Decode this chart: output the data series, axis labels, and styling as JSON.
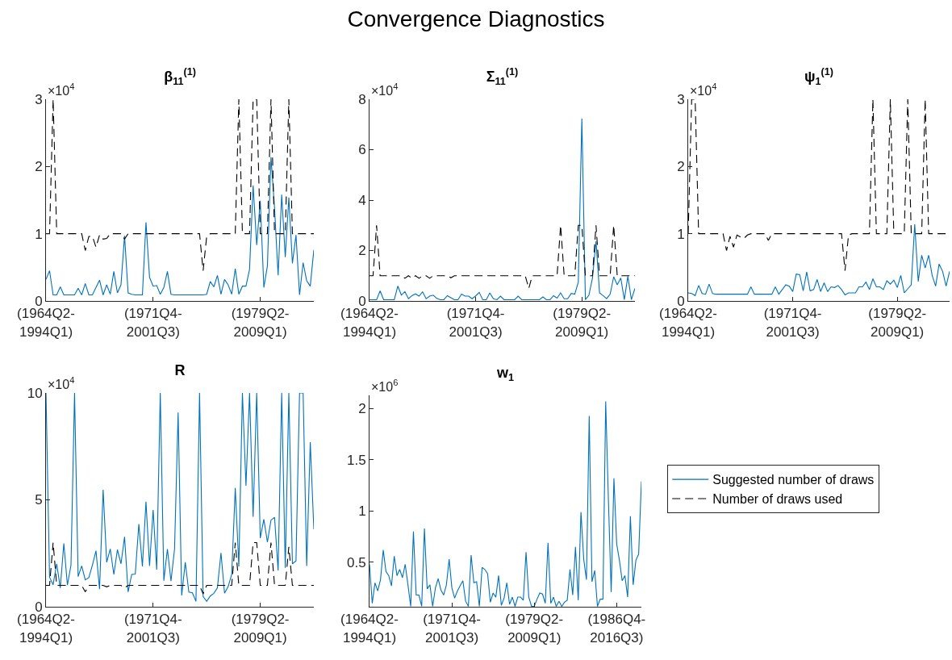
{
  "chart_data": [
    {
      "type": "line",
      "title": "β$_{11}$$^{(1)}$",
      "annotations": [
        "Convergence Diagnostics",
        "×10$^{4}$"
      ],
      "categories": [
        "(1964Q2-\n1994Q1)",
        null,
        null,
        null,
        null,
        null,
        null,
        null,
        null,
        null,
        null,
        null,
        null,
        null,
        null,
        null,
        null,
        null,
        null,
        null,
        null,
        null,
        null,
        null,
        null,
        null,
        null,
        null,
        null,
        null,
        "(1971Q4-\n2001Q3)",
        null,
        null,
        null,
        null,
        null,
        null,
        null,
        null,
        null,
        null,
        null,
        null,
        null,
        null,
        null,
        null,
        null,
        null,
        null,
        null,
        null,
        null,
        null,
        null,
        null,
        null,
        null,
        null,
        null,
        "(1979Q2-\n2009Q1)",
        null,
        null,
        null,
        null,
        null,
        null,
        null,
        null,
        null,
        null,
        null,
        null,
        null,
        null,
        null
      ],
      "ylim": [
        0,
        3
      ],
      "yticks": [
        0,
        1,
        2,
        3
      ],
      "legend": false,
      "series": [
        {
          "color": "#0072bd",
          "line_style": "solid",
          "values": [
            0.32,
            0.45,
            0.09,
            0.09,
            0.21,
            0.09,
            0.09,
            0.09,
            0.09,
            0.19,
            0.09,
            0.26,
            0.09,
            0.09,
            0.2,
            0.31,
            0.09,
            0.24,
            0.1,
            0.44,
            0.12,
            0.24,
            0.97,
            0.12,
            0.1,
            0.09,
            0.09,
            0.09,
            1.17,
            0.35,
            0.22,
            0.23,
            0.1,
            0.2,
            0.44,
            0.1,
            0.09,
            0.09,
            0.09,
            0.09,
            0.09,
            0.09,
            0.09,
            0.09,
            0.09,
            0.1,
            0.29,
            0.21,
            0.38,
            0.1,
            0.32,
            0.24,
            0.1,
            0.48,
            0.1,
            0.22,
            0.22,
            0.47,
            1.72,
            0.83,
            1.49,
            0.2,
            0.52,
            2.14,
            1.38,
            0.38,
            1.58,
            0.65,
            1.54,
            0.56,
            0.98,
            0.09,
            0.57,
            0.3,
            0.22,
            0.76
          ]
        },
        {
          "color": "#000000",
          "line_style": "dashed",
          "values": [
            1,
            1,
            3,
            1,
            1,
            1,
            1,
            1,
            1,
            1,
            1,
            0.75,
            0.96,
            0.96,
            0.8,
            0.98,
            0.92,
            0.93,
            1,
            1,
            1,
            1,
            0.92,
            1,
            1,
            1,
            1,
            1,
            1,
            1,
            1,
            1,
            1,
            1,
            1,
            1,
            1,
            1,
            1,
            1,
            1,
            1,
            1,
            1,
            0.45,
            0.96,
            1,
            1,
            1,
            1,
            1,
            1,
            1,
            1,
            3,
            1,
            1,
            1,
            3,
            3,
            1,
            1,
            1,
            3,
            1,
            1,
            1,
            1,
            3,
            1,
            1,
            1,
            1,
            1,
            1,
            1
          ]
        }
      ]
    },
    {
      "type": "line",
      "title": "Σ$_{11}$$^{(1)}$",
      "annotations": [
        "×10$^{4}$"
      ],
      "categories": [
        "(1964Q2-\n1994Q1)",
        null,
        null,
        null,
        null,
        null,
        null,
        null,
        null,
        null,
        null,
        null,
        null,
        null,
        null,
        null,
        null,
        null,
        null,
        null,
        null,
        null,
        null,
        null,
        null,
        null,
        null,
        null,
        null,
        null,
        "(1971Q4-\n2001Q3)",
        null,
        null,
        null,
        null,
        null,
        null,
        null,
        null,
        null,
        null,
        null,
        null,
        null,
        null,
        null,
        null,
        null,
        null,
        null,
        null,
        null,
        null,
        null,
        null,
        null,
        null,
        null,
        null,
        null,
        "(1979Q2-\n2009Q1)",
        null,
        null,
        null,
        null,
        null,
        null,
        null,
        null,
        null,
        null,
        null,
        null,
        null,
        null,
        null
      ],
      "ylim": [
        0,
        8
      ],
      "yticks": [
        0,
        2,
        4,
        6,
        8
      ],
      "legend": false,
      "series": [
        {
          "color": "#0072bd",
          "line_style": "solid",
          "values": [
            0.05,
            0.05,
            0.05,
            0.4,
            0.05,
            0.05,
            0.05,
            0.05,
            0.59,
            0.23,
            0.37,
            0.09,
            0.21,
            0.28,
            0.19,
            0.36,
            0.09,
            0.19,
            0.23,
            0.1,
            0.05,
            0.05,
            0.21,
            0.13,
            0.05,
            0.05,
            0.27,
            0.19,
            0.19,
            0.09,
            0.2,
            0.34,
            0.05,
            0.05,
            0.32,
            0.09,
            0.05,
            0.19,
            0.05,
            0.05,
            0.05,
            0.05,
            0.19,
            0.05,
            0.05,
            0.05,
            0.05,
            0.05,
            0.05,
            0.16,
            0.05,
            0.05,
            0.21,
            0.11,
            0.32,
            0.09,
            0.09,
            0.3,
            0.27,
            0.75,
            7.23,
            0.05,
            0.23,
            0.91,
            2.37,
            0.32,
            0.21,
            0.09,
            0.27,
            0.96,
            0.64,
            0.91,
            0.05,
            0.98,
            0.05,
            0.5
          ]
        },
        {
          "color": "#000000",
          "line_style": "dashed",
          "values": [
            1,
            1,
            3,
            1,
            1,
            1,
            1,
            1,
            1,
            1,
            0.9,
            1,
            0.9,
            1,
            0.9,
            1,
            1,
            0.9,
            1,
            1,
            1,
            1,
            1,
            0.92,
            1,
            1,
            1,
            1,
            1,
            1,
            1,
            1,
            1,
            1,
            1,
            1,
            1,
            1,
            1,
            1,
            1,
            1,
            1,
            1,
            1,
            0.5,
            1,
            1,
            1,
            1,
            1,
            1,
            1,
            1,
            3,
            1,
            1,
            1,
            1,
            3,
            3,
            1,
            1,
            1,
            3,
            1,
            1,
            1,
            1,
            3,
            1,
            1,
            1,
            1,
            1,
            1
          ]
        }
      ]
    },
    {
      "type": "line",
      "title": "ψ$_{1}$$^{(1)}$",
      "annotations": [
        "×10$^{4}$"
      ],
      "categories": [
        "(1964Q2-\n1994Q1)",
        null,
        null,
        null,
        null,
        null,
        null,
        null,
        null,
        null,
        null,
        null,
        null,
        null,
        null,
        null,
        null,
        null,
        null,
        null,
        null,
        null,
        null,
        null,
        null,
        null,
        null,
        null,
        null,
        null,
        "(1971Q4-\n2001Q3)",
        null,
        null,
        null,
        null,
        null,
        null,
        null,
        null,
        null,
        null,
        null,
        null,
        null,
        null,
        null,
        null,
        null,
        null,
        null,
        null,
        null,
        null,
        null,
        null,
        null,
        null,
        null,
        null,
        null,
        "(1979Q2-\n2009Q1)",
        null,
        null,
        null,
        null,
        null,
        null,
        null,
        null,
        null,
        null,
        null,
        null,
        null,
        null,
        null
      ],
      "ylim": [
        0,
        3
      ],
      "yticks": [
        0,
        1,
        2,
        3
      ],
      "legend": false,
      "series": [
        {
          "color": "#0072bd",
          "line_style": "solid",
          "values": [
            0.12,
            0.11,
            0.08,
            0.23,
            0.11,
            0.1,
            0.25,
            0.11,
            0.1,
            0.1,
            0.1,
            0.1,
            0.1,
            0.1,
            0.1,
            0.1,
            0.1,
            0.1,
            0.21,
            0.1,
            0.1,
            0.1,
            0.1,
            0.1,
            0.1,
            0.21,
            0.1,
            0.17,
            0.24,
            0.22,
            0.14,
            0.4,
            0.39,
            0.15,
            0.43,
            0.15,
            0.17,
            0.32,
            0.14,
            0.27,
            0.14,
            0.21,
            0.2,
            0.23,
            0.17,
            0.09,
            0.12,
            0.12,
            0.12,
            0.21,
            0.21,
            0.28,
            0.17,
            0.33,
            0.21,
            0.21,
            0.17,
            0.3,
            0.25,
            0.31,
            0.2,
            0.38,
            0.12,
            0.18,
            0.24,
            1.14,
            0.29,
            0.68,
            0.49,
            0.68,
            0.38,
            0.22,
            0.55,
            0.44,
            0.22,
            0.44
          ]
        },
        {
          "color": "#000000",
          "line_style": "dashed",
          "values": [
            1,
            3,
            3,
            1,
            1,
            1,
            1,
            1,
            1,
            1,
            1,
            0.75,
            0.96,
            0.8,
            0.98,
            0.95,
            0.93,
            0.98,
            1,
            1,
            1,
            1,
            1,
            0.9,
            1,
            1,
            1,
            1,
            1,
            1,
            1,
            1,
            1,
            1,
            1,
            1,
            1,
            1,
            1,
            1,
            1,
            1,
            1,
            1,
            1,
            0.45,
            0.98,
            1,
            1,
            1,
            1,
            1,
            1,
            3,
            1,
            1,
            1,
            1,
            3,
            1,
            1,
            1,
            1,
            3,
            1,
            1,
            1,
            1,
            3,
            1,
            1,
            1,
            1,
            1,
            1,
            1
          ]
        }
      ]
    },
    {
      "type": "line",
      "title": "R",
      "annotations": [
        "×10$^{4}$"
      ],
      "categories": [
        "(1964Q2-\n1994Q1)",
        null,
        null,
        null,
        null,
        null,
        null,
        null,
        null,
        null,
        null,
        null,
        null,
        null,
        null,
        null,
        null,
        null,
        null,
        null,
        null,
        null,
        null,
        null,
        null,
        null,
        null,
        null,
        null,
        null,
        "(1971Q4-\n2001Q3)",
        null,
        null,
        null,
        null,
        null,
        null,
        null,
        null,
        null,
        null,
        null,
        null,
        null,
        null,
        null,
        null,
        null,
        null,
        null,
        null,
        null,
        null,
        null,
        null,
        null,
        null,
        null,
        null,
        null,
        "(1979Q2-\n2009Q1)",
        null,
        null,
        null,
        null,
        null,
        null,
        null,
        null,
        null,
        null,
        null,
        null,
        null,
        null,
        null
      ],
      "ylim": [
        0,
        10
      ],
      "yticks": [
        0,
        5,
        10
      ],
      "legend": "right",
      "series": [
        {
          "name": "Suggested number of draws",
          "color": "#0072bd",
          "line_style": "solid",
          "values": [
            10,
            1.38,
            1.03,
            2.01,
            0.88,
            2.96,
            1.01,
            1.95,
            10,
            1.41,
            1.91,
            1.26,
            1.36,
            1.95,
            2.62,
            0.82,
            5.47,
            2.08,
            2.7,
            1.51,
            2.67,
            2.01,
            3.27,
            0.69,
            1.51,
            1.53,
            3.87,
            1.89,
            4.91,
            1.91,
            4.53,
            1.74,
            10,
            1.22,
            2.7,
            1.2,
            2.7,
            9.08,
            0.53,
            2.08,
            0.69,
            0.65,
            0.25,
            10,
            0.48,
            0.25,
            0.5,
            0.63,
            0.88,
            2.52,
            0.63,
            0.94,
            1.51,
            5.56,
            1.89,
            10,
            5.66,
            10,
            4.21,
            10,
            3.21,
            4.09,
            3.02,
            4.05,
            4.18,
            1.7,
            10,
            1.82,
            10,
            2.01,
            2.14,
            10,
            10,
            1.91,
            7.7,
            3.62
          ]
        },
        {
          "name": "Number of draws used",
          "color": "#000000",
          "line_style": "dashed",
          "values": [
            1,
            1,
            3,
            1,
            1,
            1,
            1,
            1,
            1,
            1,
            1,
            0.7,
            1,
            1,
            1,
            1,
            1,
            0.93,
            1,
            1,
            1,
            1,
            0.88,
            1,
            1,
            1,
            1,
            1,
            1,
            1,
            1,
            1,
            1,
            1,
            1,
            1,
            1,
            1,
            1,
            1,
            1,
            1,
            1,
            1,
            0.6,
            1,
            1,
            1,
            1,
            1,
            1,
            1,
            1,
            3,
            1,
            1,
            1,
            1,
            3,
            3,
            1,
            1,
            1,
            3,
            1,
            1,
            1,
            1,
            2.8,
            1,
            1,
            1,
            1,
            1,
            1,
            1
          ]
        }
      ]
    },
    {
      "type": "line",
      "title": "w$_{1}$",
      "annotations": [
        "×10$^{6}$"
      ],
      "categories": [
        "(1964Q2-\n1994Q1)",
        null,
        null,
        null,
        null,
        null,
        null,
        null,
        null,
        null,
        null,
        null,
        null,
        null,
        null,
        null,
        null,
        null,
        null,
        null,
        null,
        null,
        null,
        null,
        null,
        null,
        null,
        null,
        null,
        null,
        "(1971Q4-\n2001Q3)",
        null,
        null,
        null,
        null,
        null,
        null,
        null,
        null,
        null,
        null,
        null,
        null,
        null,
        null,
        null,
        null,
        null,
        null,
        null,
        null,
        null,
        null,
        null,
        null,
        null,
        null,
        null,
        null,
        null,
        "(1979Q2-\n2009Q1)",
        null,
        null,
        null,
        null,
        null,
        null,
        null,
        null,
        null,
        null,
        null,
        null,
        null,
        null,
        null,
        null,
        null,
        null,
        null,
        null,
        null,
        null,
        null,
        null,
        null,
        null,
        null,
        null,
        null,
        "(1986Q4-\n2016Q3)",
        null,
        null,
        null,
        null,
        null,
        null,
        null,
        null,
        null
      ],
      "ylim": [
        0.066,
        2.13
      ],
      "yticks": [
        0.5,
        1,
        1.5,
        2
      ],
      "legend": false,
      "series": [
        {
          "color": "#0072bd",
          "line_style": "solid",
          "values": [
            0.48,
            0.1,
            0.3,
            0.22,
            0.33,
            0.62,
            0.41,
            0.37,
            0.27,
            0.56,
            0.37,
            0.43,
            0.35,
            0.48,
            0.28,
            0.07,
            0.8,
            0.18,
            0.18,
            0.07,
            0.83,
            0.24,
            0.28,
            0.07,
            0.25,
            0.34,
            0.23,
            0.18,
            0.28,
            0.53,
            0.25,
            0.15,
            0.22,
            0.27,
            0.32,
            0.12,
            0.07,
            0.57,
            0.3,
            0.31,
            0.07,
            0.45,
            0.43,
            0.39,
            0.11,
            0.2,
            0.16,
            0.37,
            0.08,
            0.15,
            0.3,
            0.09,
            0.16,
            0.07,
            0.16,
            0.16,
            0.13,
            0.6,
            0.16,
            0.07,
            0.07,
            0.14,
            0.2,
            0.19,
            0.1,
            0.69,
            0.1,
            0.16,
            0.07,
            0.12,
            0.07,
            0.11,
            0.13,
            0.43,
            0.18,
            0.65,
            0.13,
            0.99,
            0.53,
            0.33,
            1.93,
            0.31,
            0.42,
            0.07,
            0.14,
            0.14,
            2.07,
            1.1,
            0.21,
            1.32,
            0.68,
            0.52,
            0.32,
            0.37,
            0.16,
            0.95,
            0.28,
            0.52,
            0.58,
            1.29
          ]
        }
      ]
    }
  ]
}
